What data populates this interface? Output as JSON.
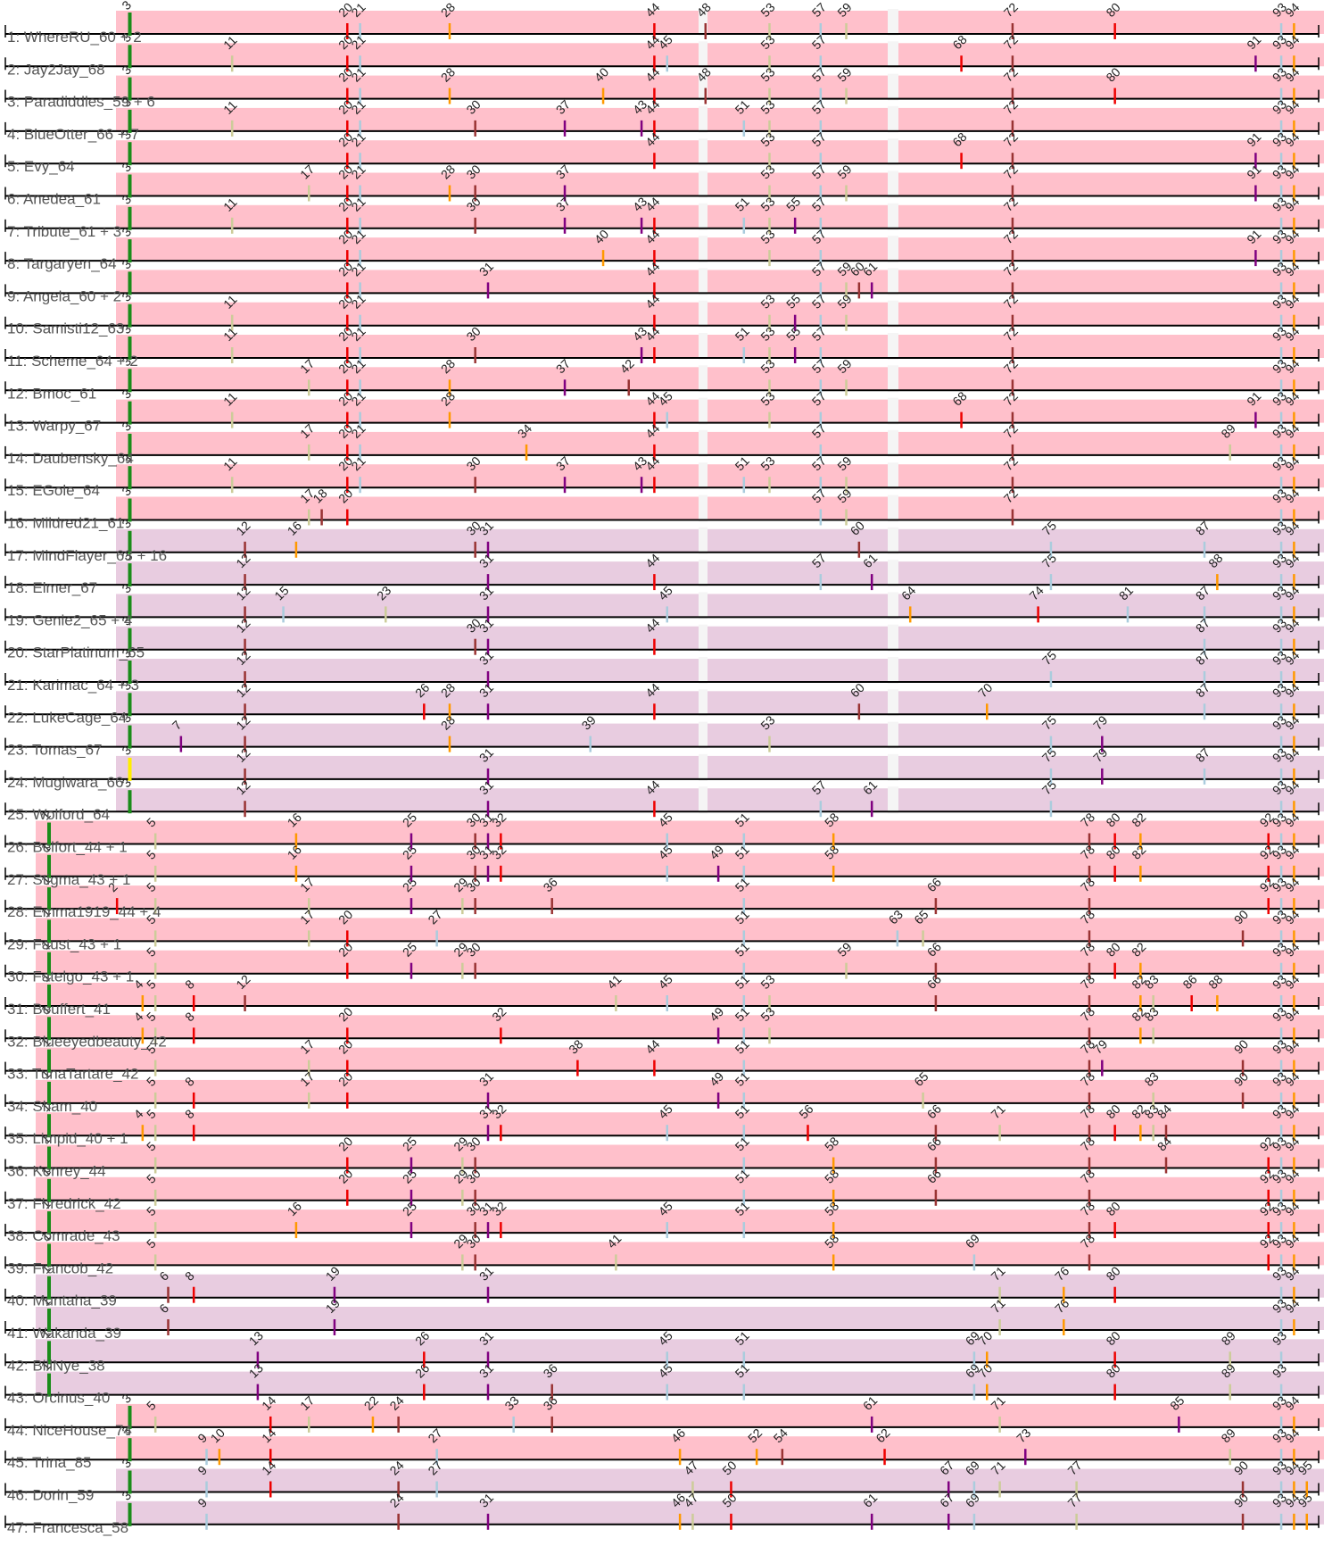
{
  "chart_data": {
    "type": "diagram",
    "kind": "mutation-track alignment",
    "x_range": [
      1,
      95
    ],
    "colors": {
      "pink_band": "#ffc0cb",
      "lilac_band": "#e8cce0",
      "gap": "#f5f5f5",
      "green_marker": "#1a8c1a",
      "yellow_marker": "#ffee00"
    },
    "groups": [
      {
        "rows": [
          1,
          16
        ],
        "band": "pink_band",
        "start": 0
      },
      {
        "rows": [
          17,
          25
        ],
        "band": "lilac_band",
        "start": 0
      },
      {
        "rows": [
          26,
          39
        ],
        "band": "pink_band",
        "start": 1
      },
      {
        "rows": [
          40,
          43
        ],
        "band": "lilac_band",
        "start": 1
      },
      {
        "rows": [
          44,
          45
        ],
        "band": "pink_band",
        "start": 0
      },
      {
        "rows": [
          46,
          47
        ],
        "band": "lilac_band",
        "start": 0
      }
    ],
    "rows": [
      {
        "label": "1: WhereRU_60 + 2",
        "marker": 3,
        "mutations": [
          20,
          21,
          28,
          44,
          48,
          53,
          57,
          59,
          72,
          80,
          93,
          94
        ]
      },
      {
        "label": "2: Jay2Jay_68",
        "marker": 3,
        "mutations": [
          11,
          20,
          21,
          44,
          45,
          53,
          57,
          68,
          72,
          91,
          93,
          94
        ]
      },
      {
        "label": "3: Paradiddles_59 + 6",
        "marker": 3,
        "mutations": [
          20,
          21,
          28,
          40,
          44,
          48,
          53,
          57,
          59,
          72,
          80,
          93,
          94
        ]
      },
      {
        "label": "4: BlueOtter_66 + 7",
        "marker": 3,
        "mutations": [
          11,
          20,
          21,
          30,
          37,
          43,
          44,
          51,
          53,
          57,
          72,
          93,
          94
        ]
      },
      {
        "label": "5: Evy_64",
        "marker": 3,
        "mutations": [
          20,
          21,
          44,
          53,
          57,
          68,
          72,
          91,
          93,
          94
        ]
      },
      {
        "label": "6: Anedea_61",
        "marker": 3,
        "mutations": [
          17,
          20,
          21,
          28,
          30,
          37,
          53,
          57,
          59,
          72,
          91,
          93,
          94
        ]
      },
      {
        "label": "7: Tribute_61 + 3",
        "marker": 3,
        "mutations": [
          11,
          20,
          21,
          30,
          37,
          43,
          44,
          51,
          53,
          55,
          57,
          72,
          93,
          94
        ]
      },
      {
        "label": "8: Targaryen_64",
        "marker": 3,
        "mutations": [
          20,
          21,
          40,
          44,
          53,
          57,
          72,
          91,
          93,
          94
        ]
      },
      {
        "label": "9: Angela_60 + 2",
        "marker": 3,
        "mutations": [
          20,
          21,
          31,
          44,
          57,
          59,
          60,
          61,
          72,
          93,
          94
        ]
      },
      {
        "label": "10: Samisti12_63",
        "marker": 3,
        "mutations": [
          11,
          20,
          21,
          44,
          53,
          55,
          57,
          59,
          72,
          93,
          94
        ]
      },
      {
        "label": "11: Scheme_64 + 2",
        "marker": 3,
        "mutations": [
          11,
          20,
          21,
          30,
          43,
          44,
          51,
          53,
          55,
          57,
          72,
          93,
          94
        ]
      },
      {
        "label": "12: Bmoc_61",
        "marker": 3,
        "mutations": [
          17,
          20,
          21,
          28,
          37,
          42,
          53,
          57,
          59,
          72,
          93,
          94
        ]
      },
      {
        "label": "13: Warpy_67",
        "marker": 3,
        "mutations": [
          11,
          20,
          21,
          28,
          44,
          45,
          53,
          57,
          68,
          72,
          91,
          93,
          94
        ]
      },
      {
        "label": "14: Daubensky_64",
        "marker": 3,
        "mutations": [
          17,
          20,
          21,
          34,
          44,
          57,
          72,
          89,
          93,
          94
        ]
      },
      {
        "label": "15: EGole_64",
        "marker": 3,
        "mutations": [
          11,
          20,
          21,
          30,
          37,
          43,
          44,
          51,
          53,
          57,
          59,
          72,
          93,
          94
        ]
      },
      {
        "label": "16: Mildred21_61",
        "marker": 3,
        "mutations": [
          17,
          18,
          20,
          57,
          59,
          72,
          93,
          94
        ]
      },
      {
        "label": "17: MindFlayer_63 + 16",
        "marker": 3,
        "mutations": [
          12,
          16,
          30,
          31,
          60,
          75,
          87,
          93,
          94
        ]
      },
      {
        "label": "18: Elmer_67",
        "marker": 3,
        "mutations": [
          12,
          31,
          44,
          57,
          61,
          75,
          88,
          93,
          94
        ]
      },
      {
        "label": "19: Genie2_65 + 4",
        "marker": 3,
        "mutations": [
          12,
          15,
          23,
          31,
          45,
          64,
          74,
          81,
          87,
          93,
          94
        ]
      },
      {
        "label": "20: StarPlatinum_65",
        "marker": 3,
        "mutations": [
          12,
          30,
          31,
          44,
          87,
          93,
          94
        ]
      },
      {
        "label": "21: Karimac_64 + 3",
        "marker": 3,
        "mutations": [
          12,
          31,
          75,
          87,
          93,
          94
        ]
      },
      {
        "label": "22: LukeCage_64",
        "marker": 3,
        "mutations": [
          12,
          26,
          28,
          31,
          44,
          60,
          70,
          87,
          93,
          94
        ]
      },
      {
        "label": "23: Tomas_67",
        "marker": 3,
        "mutations": [
          7,
          12,
          28,
          39,
          53,
          75,
          79,
          93,
          94
        ]
      },
      {
        "label": "24: Mugiwara_66",
        "marker": 3,
        "marker_color": "yellow_marker",
        "mutations": [
          12,
          31,
          75,
          79,
          87,
          93,
          94
        ]
      },
      {
        "label": "25: Wolford_64",
        "marker": 3,
        "mutations": [
          12,
          31,
          44,
          57,
          61,
          75,
          93,
          94
        ]
      },
      {
        "label": "26: Belfort_44 + 1",
        "marker": 1,
        "mutations": [
          5,
          16,
          25,
          30,
          31,
          32,
          45,
          51,
          58,
          78,
          80,
          82,
          92,
          93,
          94
        ]
      },
      {
        "label": "27: Stigma_43 + 1",
        "marker": 1,
        "mutations": [
          5,
          16,
          25,
          30,
          31,
          32,
          45,
          49,
          51,
          58,
          78,
          80,
          82,
          92,
          93,
          94
        ]
      },
      {
        "label": "28: Emma1919_44 + 4",
        "marker": 1,
        "mutations": [
          2,
          5,
          17,
          25,
          29,
          30,
          36,
          51,
          66,
          78,
          92,
          93,
          94
        ]
      },
      {
        "label": "29: Faust_43 + 1",
        "marker": 1,
        "mutations": [
          5,
          17,
          20,
          27,
          51,
          63,
          65,
          78,
          90,
          93,
          94
        ]
      },
      {
        "label": "30: Fatelgo_43 + 1",
        "marker": 1,
        "mutations": [
          5,
          20,
          25,
          29,
          30,
          51,
          59,
          66,
          78,
          80,
          82,
          93,
          94
        ]
      },
      {
        "label": "31: Beuffert_41",
        "marker": 1,
        "mutations": [
          4,
          5,
          8,
          12,
          41,
          45,
          51,
          53,
          66,
          78,
          82,
          83,
          86,
          88,
          93,
          94
        ]
      },
      {
        "label": "32: Blueeyedbeauty_42",
        "marker": 1,
        "mutations": [
          4,
          5,
          8,
          20,
          32,
          49,
          51,
          53,
          78,
          82,
          83,
          93,
          94
        ]
      },
      {
        "label": "33: TunaTartare_42",
        "marker": 1,
        "mutations": [
          5,
          17,
          20,
          38,
          44,
          51,
          78,
          79,
          90,
          93,
          94
        ]
      },
      {
        "label": "34: Sham_40",
        "marker": 1,
        "mutations": [
          5,
          8,
          17,
          20,
          31,
          49,
          51,
          65,
          78,
          83,
          90,
          93,
          94
        ]
      },
      {
        "label": "35: Limpid_40 + 1",
        "marker": 1,
        "mutations": [
          4,
          5,
          8,
          31,
          32,
          45,
          51,
          56,
          66,
          71,
          78,
          80,
          82,
          83,
          84,
          93,
          94
        ]
      },
      {
        "label": "36: Kenrey_44",
        "marker": 1,
        "mutations": [
          5,
          20,
          25,
          29,
          30,
          51,
          58,
          66,
          78,
          84,
          92,
          93,
          94
        ]
      },
      {
        "label": "37: Fhredrick_42",
        "marker": 1,
        "mutations": [
          5,
          20,
          25,
          29,
          30,
          51,
          58,
          66,
          78,
          92,
          93,
          94
        ]
      },
      {
        "label": "38: Comrade_43",
        "marker": 1,
        "mutations": [
          5,
          16,
          25,
          30,
          31,
          32,
          45,
          51,
          58,
          78,
          80,
          92,
          93,
          94
        ]
      },
      {
        "label": "39: Francob_42",
        "marker": 1,
        "mutations": [
          5,
          29,
          30,
          41,
          58,
          69,
          78,
          92,
          93,
          94
        ]
      },
      {
        "label": "40: Muntaha_39",
        "marker": 1,
        "mutations": [
          6,
          8,
          19,
          31,
          71,
          76,
          80,
          93,
          94
        ]
      },
      {
        "label": "41: Wakanda_39",
        "marker": 1,
        "mutations": [
          6,
          19,
          71,
          76,
          93,
          94
        ]
      },
      {
        "label": "42: BillNye_38",
        "marker": 1,
        "mutations": [
          13,
          26,
          31,
          45,
          51,
          69,
          70,
          80,
          89,
          93
        ]
      },
      {
        "label": "43: Orcinus_40",
        "marker": 1,
        "mutations": [
          13,
          26,
          31,
          36,
          45,
          51,
          69,
          70,
          80,
          89,
          93
        ]
      },
      {
        "label": "44: NiceHouse_74",
        "marker": 3,
        "mutations": [
          5,
          14,
          17,
          22,
          24,
          33,
          36,
          61,
          71,
          85,
          93,
          94
        ]
      },
      {
        "label": "45: Trina_85",
        "marker": 3,
        "mutations": [
          9,
          10,
          14,
          27,
          46,
          52,
          54,
          62,
          73,
          89,
          93,
          94
        ]
      },
      {
        "label": "46: Dorin_59",
        "marker": 3,
        "mutations": [
          9,
          14,
          24,
          27,
          47,
          50,
          67,
          69,
          71,
          77,
          90,
          93,
          94,
          95
        ]
      },
      {
        "label": "47: Francesca_58",
        "marker": 3,
        "mutations": [
          9,
          24,
          31,
          46,
          47,
          50,
          61,
          67,
          69,
          77,
          90,
          93,
          94,
          95
        ]
      }
    ]
  }
}
